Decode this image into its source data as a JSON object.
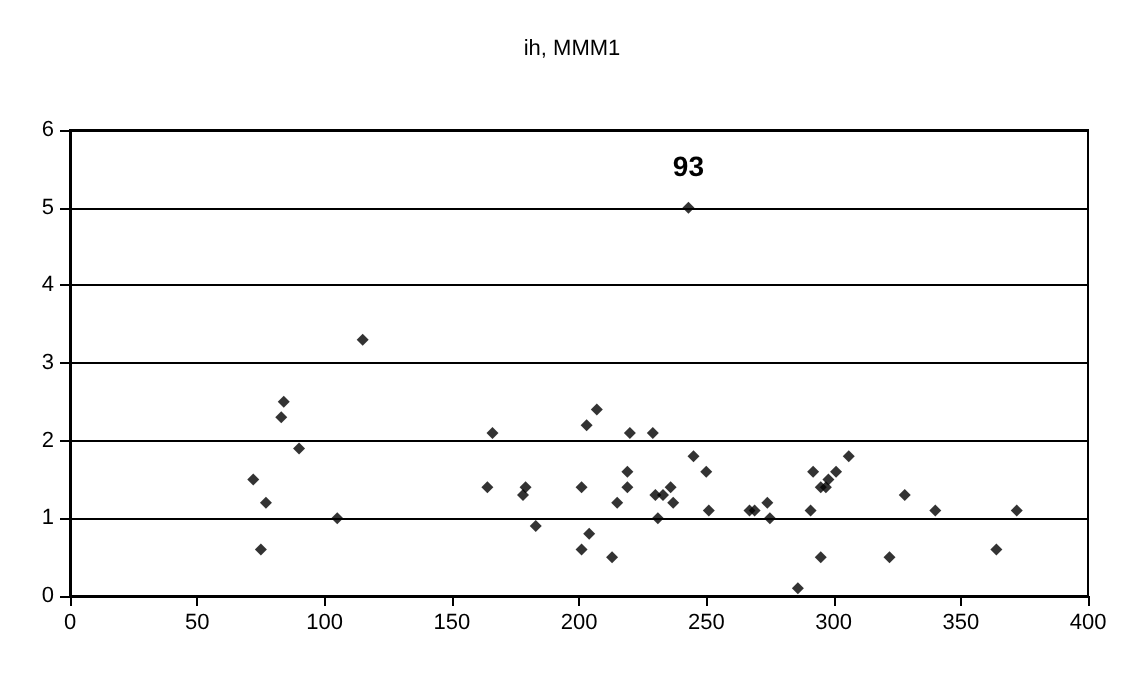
{
  "chart_data": {
    "type": "scatter",
    "title": "ih, MMM1",
    "x": [
      115,
      84,
      83,
      90,
      72,
      77,
      105,
      75,
      166,
      164,
      178,
      179,
      183,
      201,
      203,
      207,
      201,
      204,
      213,
      215,
      219,
      219,
      220,
      229,
      230,
      233,
      231,
      236,
      237,
      245,
      250,
      251,
      267,
      269,
      274,
      275,
      292,
      291,
      295,
      295,
      297,
      298,
      301,
      306,
      286,
      322,
      328,
      340,
      364,
      372,
      243
    ],
    "values": [
      3.3,
      2.5,
      2.3,
      1.9,
      1.5,
      1.2,
      1.0,
      0.6,
      2.1,
      1.4,
      1.3,
      1.4,
      0.9,
      1.4,
      2.2,
      2.4,
      0.6,
      0.8,
      0.5,
      1.2,
      1.4,
      1.6,
      2.1,
      2.1,
      1.3,
      1.3,
      1.0,
      1.4,
      1.2,
      1.8,
      1.6,
      1.1,
      1.1,
      1.1,
      1.2,
      1.0,
      1.6,
      1.1,
      0.5,
      1.4,
      1.4,
      1.5,
      1.6,
      1.8,
      0.1,
      0.5,
      1.3,
      1.1,
      0.6,
      1.1,
      5.0
    ],
    "color": "#000000",
    "marker": "diamond",
    "xlim": [
      0,
      400
    ],
    "xticks": [
      0,
      50,
      100,
      150,
      200,
      250,
      300,
      350,
      400
    ],
    "ylim": [
      0,
      6
    ],
    "yticks": [
      0,
      1,
      2,
      3,
      4,
      5,
      6
    ],
    "grid": "y",
    "annotations": [
      {
        "text": "93",
        "x": 243,
        "y": 5
      }
    ]
  }
}
